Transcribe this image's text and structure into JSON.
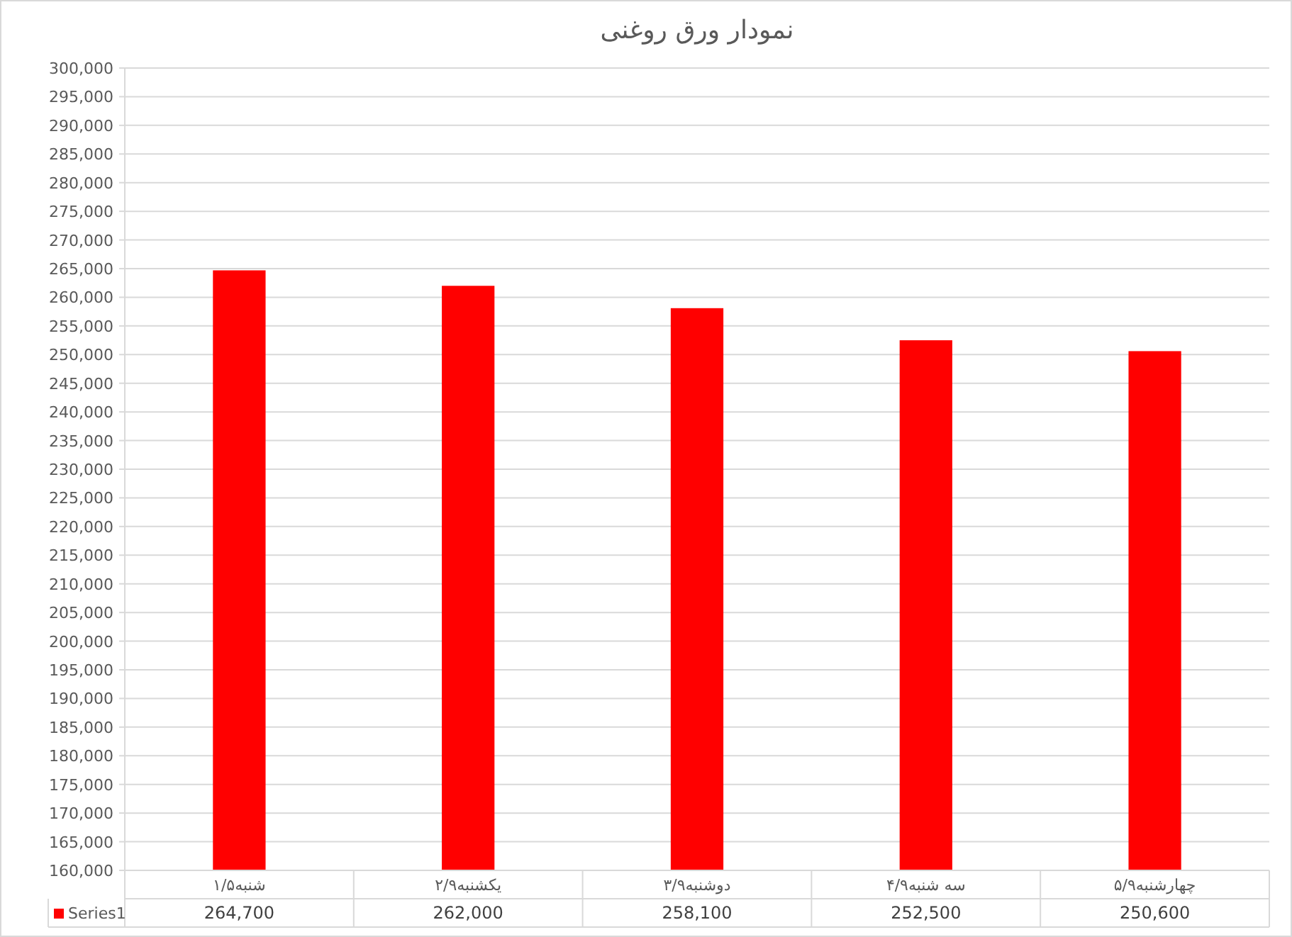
{
  "chart_data": {
    "type": "bar",
    "title": "نمودار ورق روغنی",
    "categories": [
      "شنبه۱/۵",
      "یکشنبه۲/۹",
      "دوشنبه۳/۹",
      "سه شنبه۴/۹",
      "چهارشنبه۵/۹"
    ],
    "series": [
      {
        "name": "Series1",
        "color": "#ff0000",
        "values": [
          264700,
          262000,
          258100,
          252500,
          250600
        ],
        "value_labels": [
          "264,700",
          "262,000",
          "258,100",
          "252,500",
          "250,600"
        ]
      }
    ],
    "ylim": [
      160000,
      300000
    ],
    "yticks": [
      {
        "value": 160000,
        "label": "160,000"
      },
      {
        "value": 165000,
        "label": "165,000"
      },
      {
        "value": 170000,
        "label": "170,000"
      },
      {
        "value": 175000,
        "label": "175,000"
      },
      {
        "value": 180000,
        "label": "180,000"
      },
      {
        "value": 185000,
        "label": "185,000"
      },
      {
        "value": 190000,
        "label": "190,000"
      },
      {
        "value": 195000,
        "label": "195,000"
      },
      {
        "value": 200000,
        "label": "200,000"
      },
      {
        "value": 205000,
        "label": "205,000"
      },
      {
        "value": 210000,
        "label": "210,000"
      },
      {
        "value": 215000,
        "label": "215,000"
      },
      {
        "value": 220000,
        "label": "220,000"
      },
      {
        "value": 225000,
        "label": "225,000"
      },
      {
        "value": 230000,
        "label": "230,000"
      },
      {
        "value": 235000,
        "label": "235,000"
      },
      {
        "value": 240000,
        "label": "240,000"
      },
      {
        "value": 245000,
        "label": "245,000"
      },
      {
        "value": 250000,
        "label": "250,000"
      },
      {
        "value": 255000,
        "label": "255,000"
      },
      {
        "value": 260000,
        "label": "260,000"
      },
      {
        "value": 265000,
        "label": "265,000"
      },
      {
        "value": 270000,
        "label": "270,000"
      },
      {
        "value": 275000,
        "label": "275,000"
      },
      {
        "value": 280000,
        "label": "280,000"
      },
      {
        "value": 285000,
        "label": "285,000"
      },
      {
        "value": 290000,
        "label": "290,000"
      },
      {
        "value": 295000,
        "label": "295,000"
      },
      {
        "value": 300000,
        "label": "300,000"
      }
    ],
    "grid": "y",
    "legend": "bottom"
  }
}
